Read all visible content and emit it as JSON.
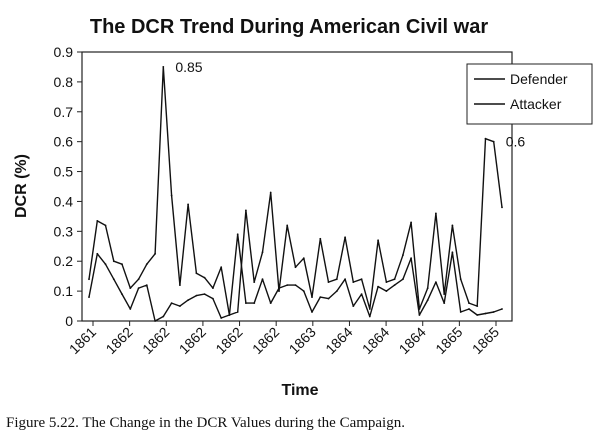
{
  "chart_data": {
    "type": "line",
    "title": "The DCR Trend During American Civil war",
    "xlabel": "Time",
    "ylabel": "DCR (%)",
    "ylim": [
      0,
      0.9
    ],
    "yticks": [
      "0",
      "0.1",
      "0.2",
      "0.3",
      "0.4",
      "0.5",
      "0.6",
      "0.7",
      "0.8",
      "0.9"
    ],
    "xtick_labels": [
      "1861",
      "1862",
      "1862",
      "1862",
      "1862",
      "1862",
      "1863",
      "1864",
      "1864",
      "1864",
      "1865",
      "1865"
    ],
    "grid": false,
    "legend_position": "top-right",
    "line_color": "#111111",
    "series": [
      {
        "name": "Defender",
        "values": [
          0.14,
          0.335,
          0.32,
          0.2,
          0.19,
          0.11,
          0.14,
          0.19,
          0.225,
          0.85,
          0.42,
          0.12,
          0.39,
          0.16,
          0.145,
          0.11,
          0.18,
          0.02,
          0.03,
          0.37,
          0.13,
          0.23,
          0.43,
          0.1,
          0.32,
          0.18,
          0.21,
          0.08,
          0.275,
          0.13,
          0.14,
          0.28,
          0.13,
          0.14,
          0.04,
          0.27,
          0.13,
          0.14,
          0.22,
          0.33,
          0.04,
          0.11,
          0.36,
          0.09,
          0.32,
          0.14,
          0.06,
          0.05,
          0.61,
          0.6,
          0.38
        ]
      },
      {
        "name": "Attacker",
        "values": [
          0.08,
          0.225,
          0.19,
          0.14,
          0.09,
          0.04,
          0.11,
          0.12,
          0.0,
          0.015,
          0.06,
          0.05,
          0.07,
          0.085,
          0.09,
          0.075,
          0.01,
          0.02,
          0.29,
          0.06,
          0.06,
          0.14,
          0.06,
          0.11,
          0.12,
          0.12,
          0.1,
          0.03,
          0.08,
          0.075,
          0.1,
          0.14,
          0.05,
          0.09,
          0.015,
          0.115,
          0.1,
          0.12,
          0.14,
          0.21,
          0.02,
          0.07,
          0.13,
          0.06,
          0.23,
          0.03,
          0.04,
          0.02,
          0.025,
          0.03,
          0.04
        ]
      }
    ],
    "annotations": [
      {
        "text": "0.85",
        "x_index": 9,
        "y": 0.85
      },
      {
        "text": "0.6",
        "x_index": 49,
        "y": 0.6
      }
    ]
  },
  "caption": "Figure 5.22. The Change in the DCR Values during the Campaign."
}
